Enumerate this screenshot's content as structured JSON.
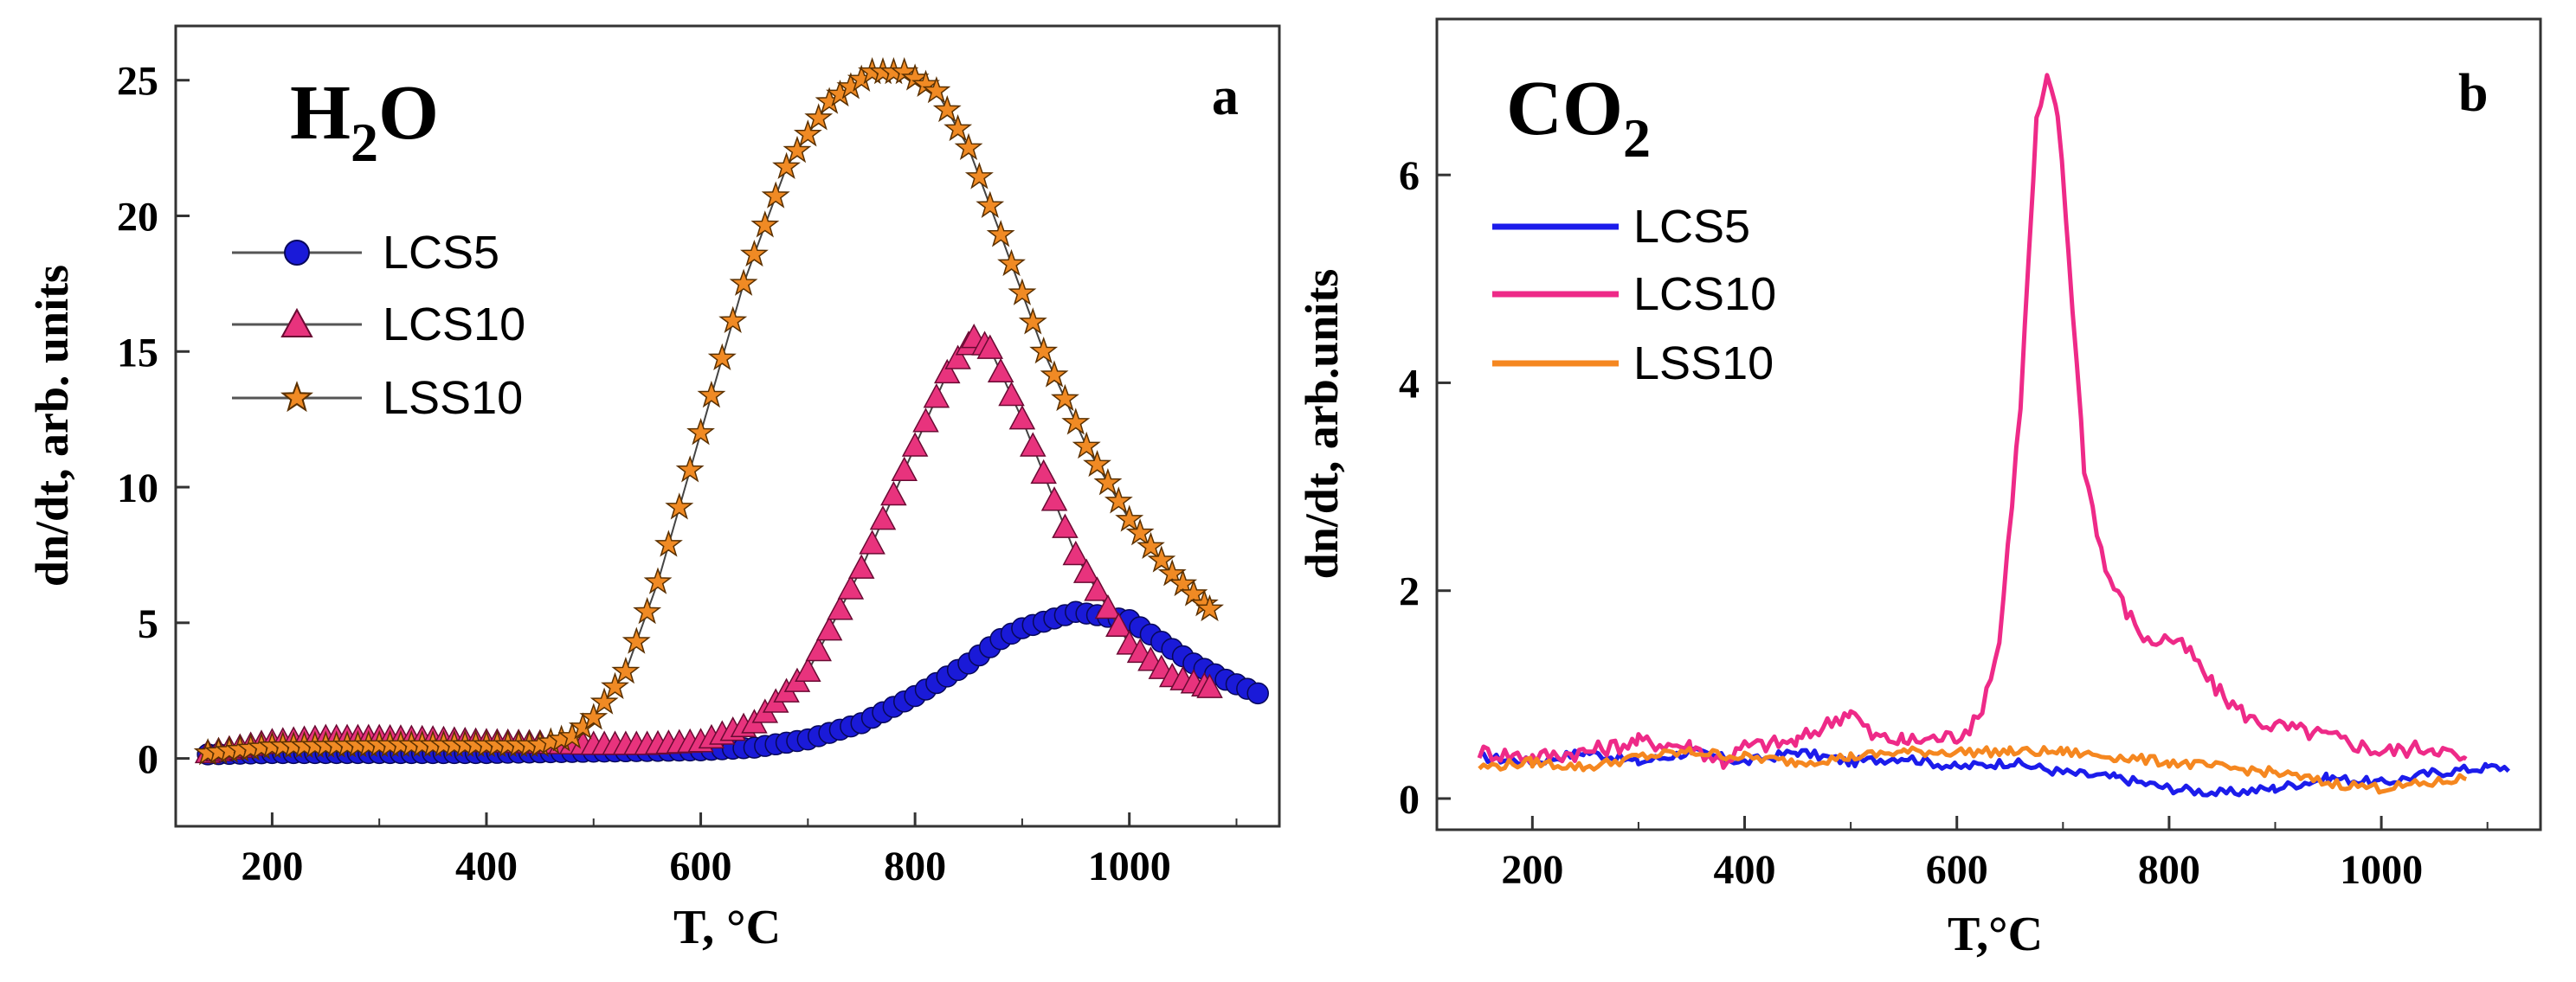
{
  "chart_data": [
    {
      "type": "line",
      "panel_letter": "a",
      "inset_label": {
        "base": "H",
        "sub": "2",
        "tail": "O"
      },
      "xlabel": "T, °C",
      "ylabel": "dn/dt, arb. units",
      "xlim": [
        110,
        1140
      ],
      "ylim": [
        -2.5,
        27
      ],
      "xticks": [
        200,
        400,
        600,
        800,
        1000
      ],
      "yticks": [
        0,
        5,
        10,
        15,
        20,
        25
      ],
      "xtick_labels": [
        "200",
        "400",
        "600",
        "800",
        "1000"
      ],
      "ytick_labels": [
        "0",
        "5",
        "10",
        "15",
        "20",
        "25"
      ],
      "legend_position": "top-left",
      "series": [
        {
          "name": "LCS5",
          "marker": "circle",
          "color": "#1a1ad8",
          "points": [
            [
              140,
              0.15
            ],
            [
              200,
              0.2
            ],
            [
              300,
              0.2
            ],
            [
              400,
              0.2
            ],
            [
              500,
              0.25
            ],
            [
              600,
              0.3
            ],
            [
              650,
              0.4
            ],
            [
              700,
              0.7
            ],
            [
              750,
              1.3
            ],
            [
              800,
              2.3
            ],
            [
              850,
              3.5
            ],
            [
              880,
              4.4
            ],
            [
              900,
              4.8
            ],
            [
              950,
              5.4
            ],
            [
              1000,
              5.1
            ],
            [
              1030,
              4.3
            ],
            [
              1060,
              3.5
            ],
            [
              1090,
              2.9
            ],
            [
              1120,
              2.4
            ]
          ]
        },
        {
          "name": "LCS10",
          "marker": "triangle",
          "color": "#e8337d",
          "points": [
            [
              140,
              0.2
            ],
            [
              200,
              0.6
            ],
            [
              250,
              0.75
            ],
            [
              300,
              0.75
            ],
            [
              350,
              0.7
            ],
            [
              400,
              0.6
            ],
            [
              450,
              0.55
            ],
            [
              500,
              0.5
            ],
            [
              550,
              0.5
            ],
            [
              600,
              0.6
            ],
            [
              650,
              1.3
            ],
            [
              700,
              3.2
            ],
            [
              750,
              7.0
            ],
            [
              800,
              11.5
            ],
            [
              830,
              14.2
            ],
            [
              855,
              15.5
            ],
            [
              870,
              15.1
            ],
            [
              900,
              12.5
            ],
            [
              950,
              7.5
            ],
            [
              1000,
              4.2
            ],
            [
              1040,
              3.0
            ],
            [
              1075,
              2.6
            ]
          ]
        },
        {
          "name": "LSS10",
          "marker": "star",
          "color": "#f08a24",
          "points": [
            [
              140,
              0.2
            ],
            [
              200,
              0.45
            ],
            [
              300,
              0.5
            ],
            [
              400,
              0.5
            ],
            [
              450,
              0.5
            ],
            [
              480,
              0.8
            ],
            [
              500,
              1.5
            ],
            [
              530,
              3.2
            ],
            [
              560,
              6.5
            ],
            [
              600,
              12.0
            ],
            [
              640,
              17.5
            ],
            [
              680,
              21.8
            ],
            [
              720,
              24.2
            ],
            [
              760,
              25.3
            ],
            [
              790,
              25.3
            ],
            [
              820,
              24.6
            ],
            [
              850,
              22.5
            ],
            [
              880,
              19.3
            ],
            [
              920,
              15.0
            ],
            [
              960,
              11.5
            ],
            [
              1000,
              8.8
            ],
            [
              1040,
              6.8
            ],
            [
              1075,
              5.5
            ]
          ]
        }
      ]
    },
    {
      "type": "line",
      "panel_letter": "b",
      "inset_label": {
        "base": "CO",
        "sub": "2",
        "tail": ""
      },
      "xlabel": "T,°C",
      "ylabel": "dn/dt, arb.units",
      "xlim": [
        110,
        1150
      ],
      "ylim": [
        -0.3,
        7.5
      ],
      "xticks": [
        200,
        400,
        600,
        800,
        1000
      ],
      "yticks": [
        0,
        2,
        4,
        6
      ],
      "xtick_labels": [
        "200",
        "400",
        "600",
        "800",
        "1000"
      ],
      "ytick_labels": [
        "0",
        "2",
        "4",
        "6"
      ],
      "legend_position": "upper-left",
      "series": [
        {
          "name": "LCS5",
          "color": "#1c1ceb",
          "points": [
            [
              150,
              0.4
            ],
            [
              200,
              0.35
            ],
            [
              250,
              0.45
            ],
            [
              300,
              0.35
            ],
            [
              350,
              0.45
            ],
            [
              400,
              0.35
            ],
            [
              450,
              0.45
            ],
            [
              500,
              0.35
            ],
            [
              550,
              0.4
            ],
            [
              600,
              0.3
            ],
            [
              650,
              0.35
            ],
            [
              700,
              0.25
            ],
            [
              750,
              0.2
            ],
            [
              800,
              0.1
            ],
            [
              850,
              0.05
            ],
            [
              900,
              0.1
            ],
            [
              950,
              0.2
            ],
            [
              1000,
              0.15
            ],
            [
              1050,
              0.25
            ],
            [
              1100,
              0.3
            ],
            [
              1120,
              0.3
            ]
          ]
        },
        {
          "name": "LCS10",
          "color": "#ee2a88",
          "points": [
            [
              150,
              0.45
            ],
            [
              200,
              0.4
            ],
            [
              250,
              0.45
            ],
            [
              300,
              0.55
            ],
            [
              350,
              0.5
            ],
            [
              380,
              0.35
            ],
            [
              400,
              0.5
            ],
            [
              450,
              0.55
            ],
            [
              500,
              0.85
            ],
            [
              520,
              0.6
            ],
            [
              550,
              0.55
            ],
            [
              600,
              0.6
            ],
            [
              620,
              0.75
            ],
            [
              640,
              1.5
            ],
            [
              660,
              3.8
            ],
            [
              675,
              6.5
            ],
            [
              685,
              6.9
            ],
            [
              695,
              6.6
            ],
            [
              705,
              5.3
            ],
            [
              720,
              3.2
            ],
            [
              740,
              2.2
            ],
            [
              760,
              1.8
            ],
            [
              780,
              1.5
            ],
            [
              800,
              1.55
            ],
            [
              820,
              1.4
            ],
            [
              840,
              1.1
            ],
            [
              860,
              0.9
            ],
            [
              880,
              0.75
            ],
            [
              900,
              0.7
            ],
            [
              950,
              0.6
            ],
            [
              1000,
              0.45
            ],
            [
              1050,
              0.5
            ],
            [
              1080,
              0.35
            ]
          ]
        },
        {
          "name": "LSS10",
          "color": "#f58720",
          "points": [
            [
              150,
              0.3
            ],
            [
              200,
              0.35
            ],
            [
              250,
              0.3
            ],
            [
              300,
              0.4
            ],
            [
              350,
              0.45
            ],
            [
              400,
              0.4
            ],
            [
              450,
              0.35
            ],
            [
              500,
              0.4
            ],
            [
              550,
              0.45
            ],
            [
              600,
              0.45
            ],
            [
              650,
              0.45
            ],
            [
              700,
              0.45
            ],
            [
              750,
              0.4
            ],
            [
              800,
              0.35
            ],
            [
              850,
              0.3
            ],
            [
              900,
              0.25
            ],
            [
              950,
              0.15
            ],
            [
              1000,
              0.1
            ],
            [
              1050,
              0.15
            ],
            [
              1080,
              0.2
            ]
          ]
        }
      ]
    }
  ]
}
